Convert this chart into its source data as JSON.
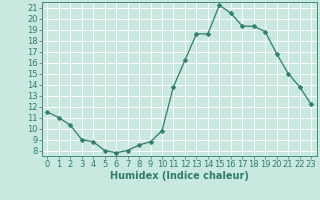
{
  "x": [
    0,
    1,
    2,
    3,
    4,
    5,
    6,
    7,
    8,
    9,
    10,
    11,
    12,
    13,
    14,
    15,
    16,
    17,
    18,
    19,
    20,
    21,
    22,
    23
  ],
  "y": [
    11.5,
    11.0,
    10.3,
    9.0,
    8.8,
    8.0,
    7.8,
    8.0,
    8.5,
    8.8,
    9.8,
    13.8,
    16.2,
    18.6,
    18.6,
    21.2,
    20.5,
    19.3,
    19.3,
    18.8,
    16.8,
    15.0,
    13.8,
    12.2
  ],
  "line_color": "#2e7d6e",
  "marker": "D",
  "marker_size": 2.5,
  "bg_color": "#c8e8e0",
  "grid_color": "#ffffff",
  "xlabel": "Humidex (Indice chaleur)",
  "xlabel_fontsize": 7,
  "tick_fontsize": 6,
  "ylim": [
    7.5,
    21.5
  ],
  "xlim": [
    -0.5,
    23.5
  ],
  "yticks": [
    8,
    9,
    10,
    11,
    12,
    13,
    14,
    15,
    16,
    17,
    18,
    19,
    20,
    21
  ],
  "xticks": [
    0,
    1,
    2,
    3,
    4,
    5,
    6,
    7,
    8,
    9,
    10,
    11,
    12,
    13,
    14,
    15,
    16,
    17,
    18,
    19,
    20,
    21,
    22,
    23
  ]
}
